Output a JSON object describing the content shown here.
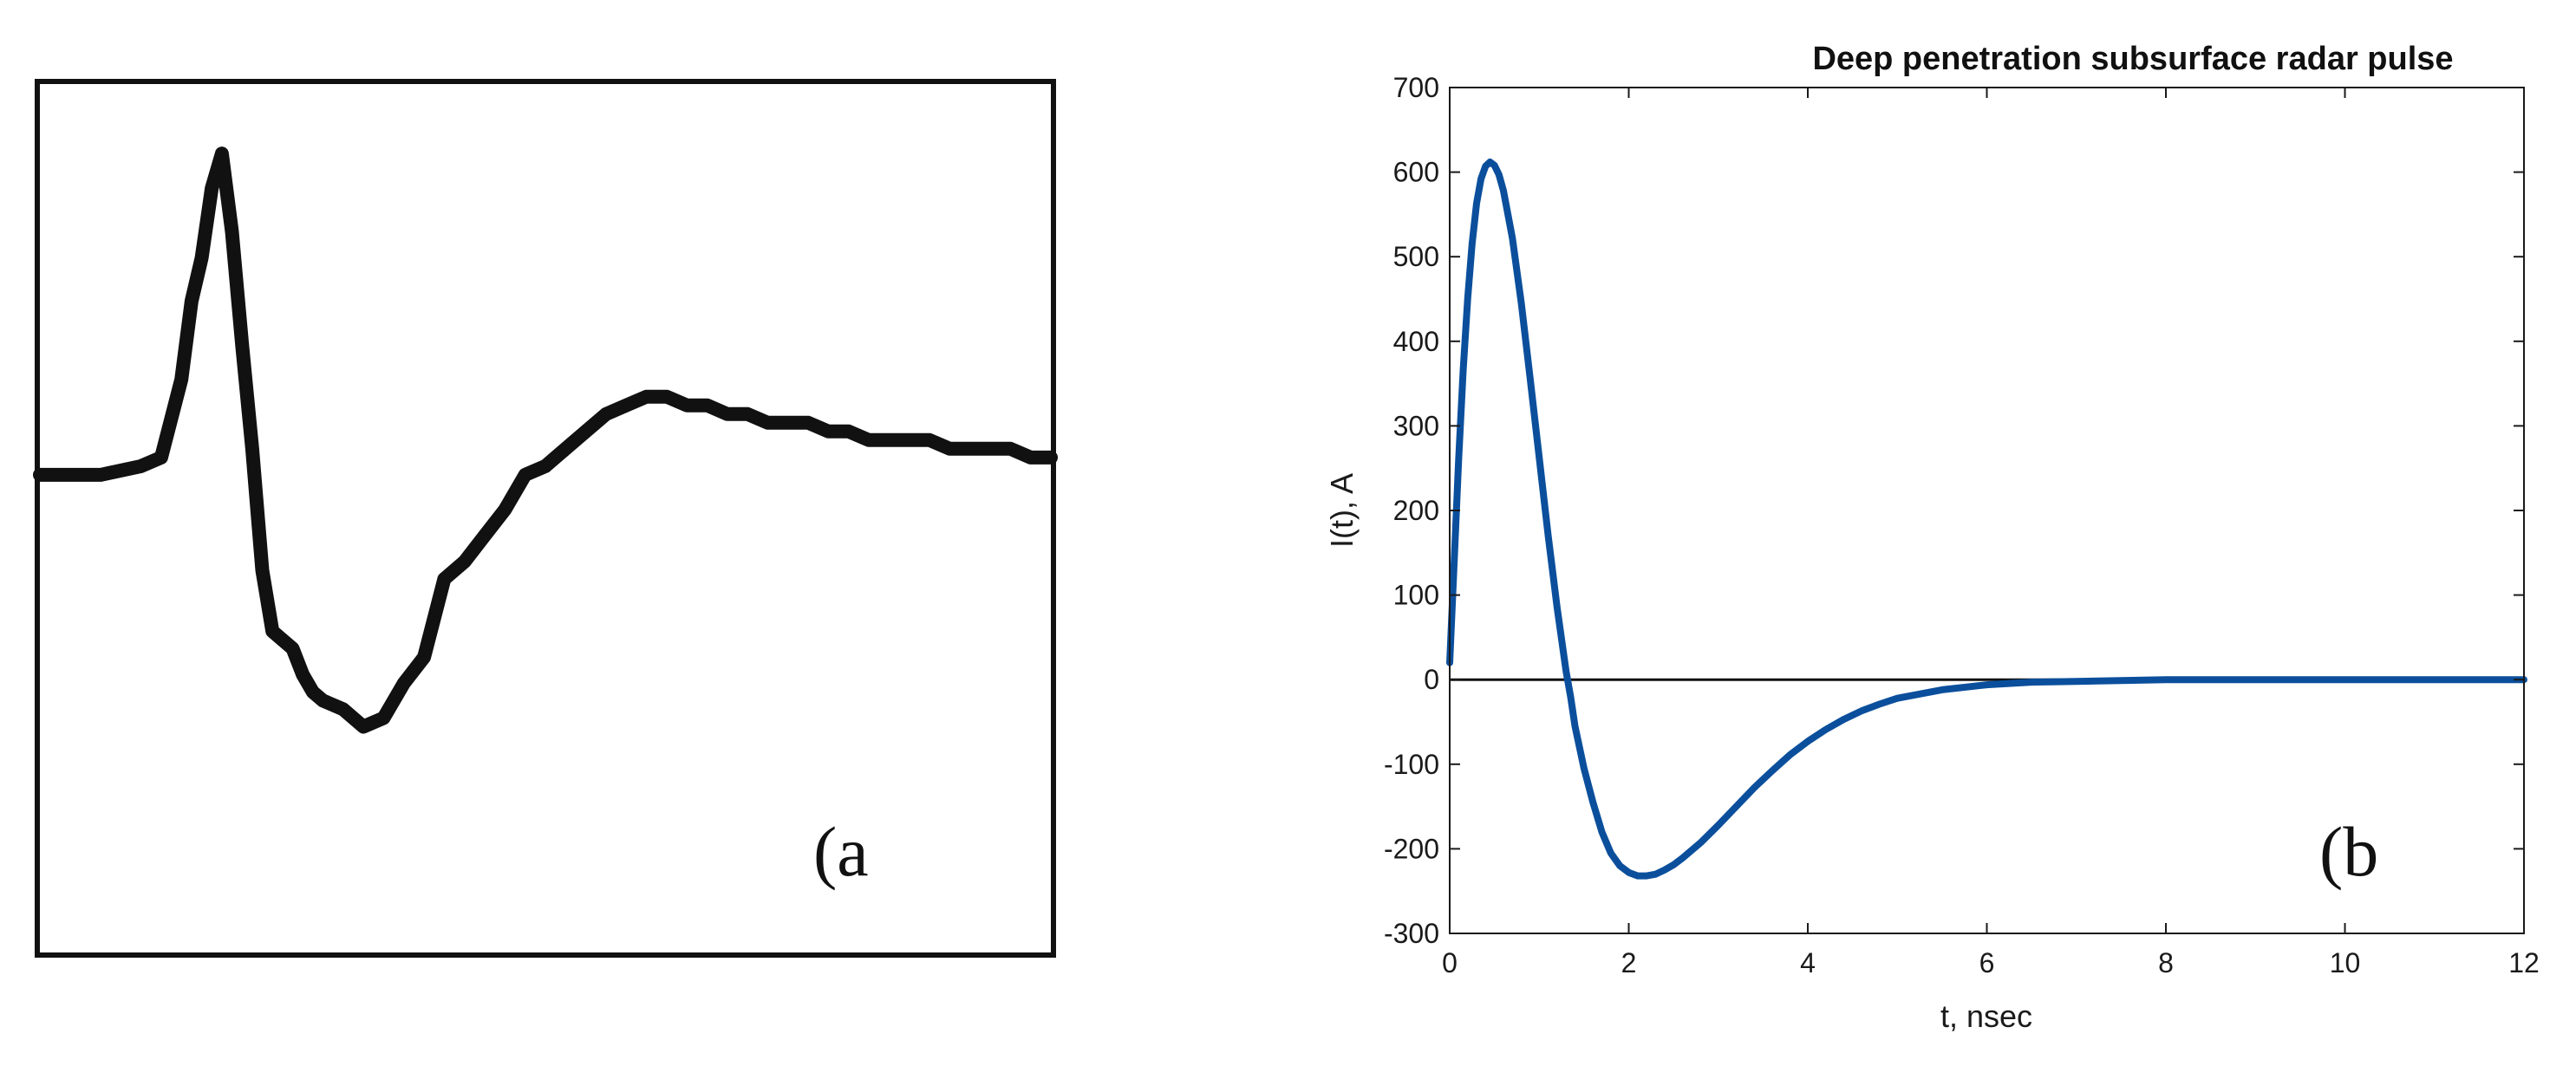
{
  "panels": {
    "a": {
      "label": "(a"
    },
    "b": {
      "label": "(b"
    }
  },
  "colors": {
    "curve_a": "#111111",
    "curve_b": "#0b4f9c",
    "axis": "#1a1a1a",
    "zero_line": "#111111"
  },
  "chart_data": [
    {
      "type": "line",
      "title": "",
      "xlabel": "",
      "ylabel": "",
      "grid": false,
      "series": [
        {
          "x": [
            0,
            0.06,
            0.1,
            0.12,
            0.14,
            0.15,
            0.16,
            0.17,
            0.18,
            0.19,
            0.2,
            0.21,
            0.22,
            0.23,
            0.24,
            0.25,
            0.26,
            0.27,
            0.28,
            0.3,
            0.32,
            0.34,
            0.36,
            0.38,
            0.4,
            0.42,
            0.44,
            0.46,
            0.48,
            0.5,
            0.52,
            0.54,
            0.56,
            0.58,
            0.6,
            0.62,
            0.64,
            0.66,
            0.68,
            0.7,
            0.72,
            0.74,
            0.76,
            0.78,
            0.8,
            0.82,
            0.84,
            0.86,
            0.88,
            0.9,
            0.92,
            0.94,
            0.96,
            0.98,
            1.0
          ],
          "y": [
            0.55,
            0.55,
            0.56,
            0.57,
            0.66,
            0.75,
            0.8,
            0.88,
            0.92,
            0.83,
            0.7,
            0.58,
            0.44,
            0.37,
            0.36,
            0.35,
            0.32,
            0.3,
            0.29,
            0.28,
            0.26,
            0.27,
            0.31,
            0.34,
            0.43,
            0.45,
            0.48,
            0.51,
            0.55,
            0.56,
            0.58,
            0.6,
            0.62,
            0.63,
            0.64,
            0.64,
            0.63,
            0.63,
            0.62,
            0.62,
            0.61,
            0.61,
            0.61,
            0.6,
            0.6,
            0.59,
            0.59,
            0.59,
            0.59,
            0.58,
            0.58,
            0.58,
            0.58,
            0.57,
            0.57
          ]
        }
      ]
    },
    {
      "type": "line",
      "title": "Deep penetration subsurface radar pulse",
      "xlabel": "t, nsec",
      "ylabel": "I(t), A",
      "xlim": [
        0,
        12
      ],
      "ylim": [
        -300,
        700
      ],
      "xticks": [
        0,
        2,
        4,
        6,
        8,
        10,
        12
      ],
      "yticks": [
        -300,
        -200,
        -100,
        0,
        100,
        200,
        300,
        400,
        500,
        600,
        700
      ],
      "grid": false,
      "series": [
        {
          "x": [
            0,
            0.05,
            0.1,
            0.15,
            0.2,
            0.25,
            0.3,
            0.35,
            0.4,
            0.45,
            0.5,
            0.55,
            0.6,
            0.7,
            0.8,
            0.9,
            1.0,
            1.1,
            1.2,
            1.3,
            1.35,
            1.4,
            1.5,
            1.6,
            1.7,
            1.8,
            1.9,
            2.0,
            2.1,
            2.2,
            2.3,
            2.4,
            2.5,
            2.6,
            2.8,
            3.0,
            3.2,
            3.4,
            3.6,
            3.8,
            4.0,
            4.2,
            4.4,
            4.6,
            4.8,
            5.0,
            5.5,
            6.0,
            6.5,
            7.0,
            7.5,
            8.0,
            8.5,
            9.0,
            10.0,
            11.0,
            12.0
          ],
          "y": [
            20,
            140,
            260,
            365,
            450,
            515,
            563,
            592,
            607,
            612,
            608,
            597,
            578,
            522,
            445,
            355,
            262,
            170,
            85,
            10,
            -20,
            -55,
            -105,
            -145,
            -180,
            -205,
            -220,
            -228,
            -232,
            -232,
            -230,
            -225,
            -219,
            -211,
            -193,
            -172,
            -150,
            -128,
            -108,
            -89,
            -73,
            -59,
            -47,
            -37,
            -29,
            -22,
            -12,
            -6,
            -3,
            -2,
            -1,
            0,
            0,
            0,
            0,
            0,
            0
          ]
        }
      ]
    }
  ]
}
